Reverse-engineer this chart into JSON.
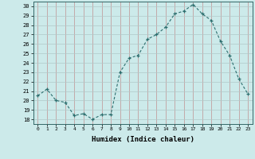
{
  "x": [
    0,
    1,
    2,
    3,
    4,
    5,
    6,
    7,
    8,
    9,
    10,
    11,
    12,
    13,
    14,
    15,
    16,
    17,
    18,
    19,
    20,
    21,
    22,
    23
  ],
  "y": [
    20.5,
    21.2,
    20.0,
    19.8,
    18.4,
    18.6,
    18.0,
    18.5,
    18.5,
    23.0,
    24.5,
    24.8,
    26.5,
    27.0,
    27.8,
    29.2,
    29.5,
    30.2,
    29.2,
    28.5,
    26.3,
    24.8,
    22.3,
    20.7
  ],
  "xlabel": "Humidex (Indice chaleur)",
  "ylim_min": 17.5,
  "ylim_max": 30.5,
  "xlim_min": -0.5,
  "xlim_max": 23.5,
  "yticks": [
    18,
    19,
    20,
    21,
    22,
    23,
    24,
    25,
    26,
    27,
    28,
    29,
    30
  ],
  "xticks": [
    0,
    1,
    2,
    3,
    4,
    5,
    6,
    7,
    8,
    9,
    10,
    11,
    12,
    13,
    14,
    15,
    16,
    17,
    18,
    19,
    20,
    21,
    22,
    23
  ],
  "line_color": "#2d6e6e",
  "marker": "+",
  "bg_color": "#cceaea",
  "grid_color": "#b0c8c8",
  "grid_color_major": "#c08080"
}
